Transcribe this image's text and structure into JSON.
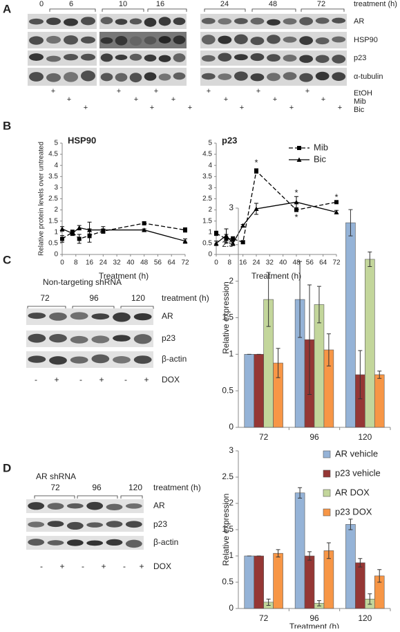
{
  "panel_labels": [
    "A",
    "B",
    "C",
    "D"
  ],
  "blots": {
    "A": {
      "times": [
        "0",
        "6",
        "10",
        "16",
        "24",
        "48",
        "72"
      ],
      "treatment_label": "treatment (h)",
      "rows": [
        "AR",
        "HSP90",
        "p23",
        "α-tubulin"
      ],
      "conditions": [
        "EtOH",
        "Mib",
        "Bic"
      ],
      "plus": "+"
    },
    "C": {
      "title": "Non-targeting shRNA",
      "times": [
        "72",
        "96",
        "120"
      ],
      "treatment_label": "treatment (h)",
      "rows": [
        "AR",
        "p23",
        "β-actin"
      ],
      "minus": "-",
      "plus": "+",
      "condition": "DOX"
    },
    "D": {
      "title": "AR shRNA",
      "times": [
        "72",
        "96",
        "120"
      ],
      "treatment_label": "treatment (h)",
      "rows": [
        "AR",
        "p23",
        "β-actin"
      ],
      "minus": "-",
      "plus": "+",
      "condition": "DOX"
    }
  },
  "chart_data": [
    {
      "type": "line",
      "title": "HSP90",
      "ylabel": "Relative protein levels over untreated",
      "xlabel": "Treatment (h)",
      "x": [
        0,
        6,
        10,
        16,
        24,
        48,
        72
      ],
      "xlim": [
        0,
        72
      ],
      "xticks": [
        0,
        8,
        16,
        24,
        32,
        40,
        48,
        56,
        64,
        72
      ],
      "ylim": [
        0,
        5
      ],
      "yticks": [
        0,
        0.5,
        1,
        1.5,
        2,
        2.5,
        3,
        3.5,
        4,
        4.5,
        5
      ],
      "legend": false,
      "series": [
        {
          "name": "Mib",
          "color": "#000000",
          "dash": true,
          "marker": "square",
          "values": [
            0.7,
            1.0,
            0.7,
            0.85,
            1.05,
            1.4,
            1.1
          ],
          "errors": [
            0.15,
            0.1,
            0.2,
            0.3,
            0.1,
            0.05,
            0.1
          ]
        },
        {
          "name": "Bic",
          "color": "#000000",
          "dash": false,
          "marker": "triangle",
          "values": [
            1.15,
            0.95,
            1.2,
            1.1,
            1.1,
            1.1,
            0.6
          ],
          "errors": [
            0.1,
            0.1,
            0.1,
            0.35,
            0.15,
            0.05,
            0.1
          ]
        }
      ]
    },
    {
      "type": "line",
      "title": "p23",
      "xlabel": "Treatment (h)",
      "x": [
        0,
        6,
        10,
        16,
        24,
        48,
        72
      ],
      "xlim": [
        0,
        72
      ],
      "xticks": [
        0,
        8,
        16,
        24,
        32,
        40,
        48,
        56,
        64,
        72
      ],
      "ylim": [
        0,
        5
      ],
      "yticks": [
        0,
        0.5,
        1,
        1.5,
        2,
        2.5,
        3,
        3.5,
        4,
        4.5,
        5
      ],
      "legend": true,
      "series": [
        {
          "name": "Mib",
          "color": "#000000",
          "dash": true,
          "marker": "square",
          "values": [
            0.95,
            0.7,
            0.7,
            0.55,
            3.75,
            2.0,
            2.35
          ],
          "errors": [
            0.1,
            0.2,
            0.1,
            0.05,
            0.1,
            0.05,
            0.05
          ]
        },
        {
          "name": "Bic",
          "color": "#000000",
          "dash": false,
          "marker": "triangle",
          "values": [
            0.5,
            0.85,
            0.5,
            1.3,
            2.05,
            2.35,
            1.9
          ],
          "errors": [
            0.1,
            0.3,
            0.1,
            0.05,
            0.25,
            0.25,
            0.08
          ]
        }
      ],
      "annotations": [
        {
          "text": "*",
          "x": 24,
          "y": 4.1
        },
        {
          "text": "*",
          "x": 48,
          "y": 2.75
        },
        {
          "text": "*",
          "x": 48,
          "y": 1.65
        },
        {
          "text": "*",
          "x": 72,
          "y": 2.55
        }
      ]
    },
    {
      "type": "bar",
      "ylabel": "Relative expression",
      "categories": [
        "72",
        "96",
        "120"
      ],
      "ylim": [
        0,
        3
      ],
      "yticks": [
        0,
        0.5,
        1,
        1.5,
        2,
        2.5,
        3
      ],
      "legend": false,
      "series": [
        {
          "name": "AR vehicle",
          "color": "#95b3d7",
          "values": [
            1,
            1.75,
            2.8
          ],
          "errors": [
            0,
            0.52,
            0.18
          ]
        },
        {
          "name": "p23 vehicle",
          "color": "#953735",
          "values": [
            1,
            1.2,
            0.72
          ],
          "errors": [
            0,
            0.75,
            0.33
          ]
        },
        {
          "name": "AR DOX",
          "color": "#c3d69b",
          "values": [
            1.75,
            1.68,
            2.3
          ],
          "errors": [
            0.37,
            0.25,
            0.1
          ]
        },
        {
          "name": "p23 DOX",
          "color": "#f79646",
          "values": [
            0.88,
            1.06,
            0.72
          ],
          "errors": [
            0.2,
            0.22,
            0.05
          ]
        }
      ]
    },
    {
      "type": "bar",
      "ylabel": "Relative expression",
      "xlabel": "Treatment (h)",
      "categories": [
        "72",
        "96",
        "120"
      ],
      "ylim": [
        0,
        3
      ],
      "yticks": [
        0,
        0.5,
        1,
        1.5,
        2,
        2.5,
        3
      ],
      "legend": true,
      "series": [
        {
          "name": "AR vehicle",
          "color": "#95b3d7",
          "values": [
            1,
            2.2,
            1.6
          ],
          "errors": [
            0,
            0.1,
            0.1
          ]
        },
        {
          "name": "p23 vehicle",
          "color": "#953735",
          "values": [
            1,
            1.0,
            0.87
          ],
          "errors": [
            0,
            0.08,
            0.08
          ]
        },
        {
          "name": "AR DOX",
          "color": "#c3d69b",
          "values": [
            0.12,
            0.1,
            0.18
          ],
          "errors": [
            0.06,
            0.05,
            0.1
          ]
        },
        {
          "name": "p23 DOX",
          "color": "#f79646",
          "values": [
            1.05,
            1.1,
            0.62
          ],
          "errors": [
            0.07,
            0.15,
            0.12
          ]
        }
      ]
    }
  ]
}
